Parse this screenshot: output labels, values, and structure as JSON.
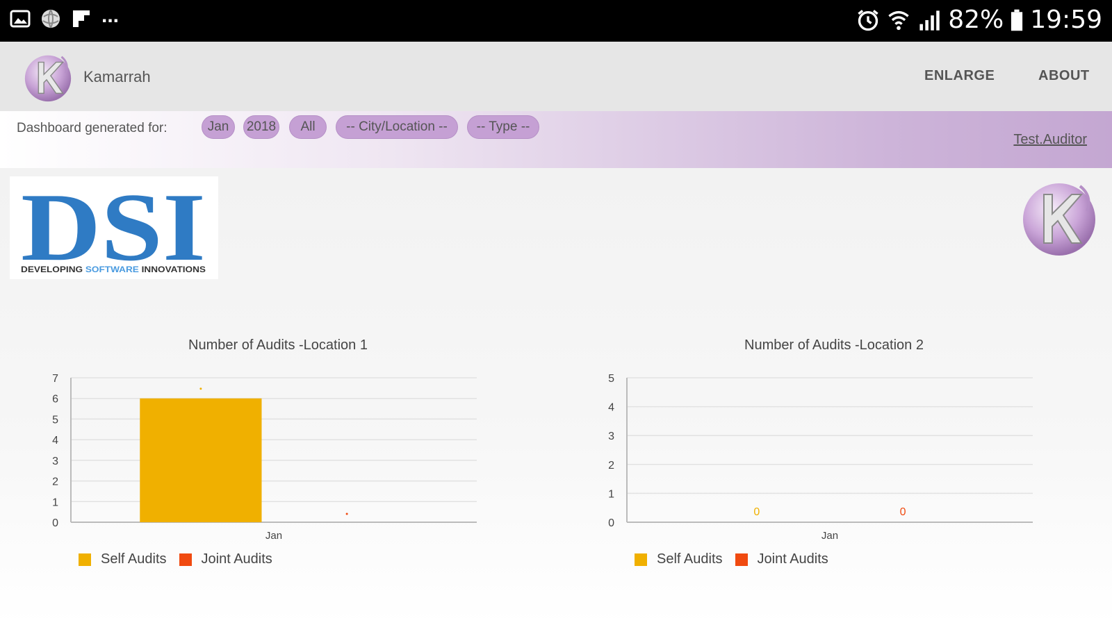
{
  "status_bar": {
    "left_icons": [
      "image-icon",
      "globe-app-icon",
      "flipboard-icon",
      "more-notifications-icon"
    ],
    "more_text": "...",
    "battery": "82%",
    "time": "19:59"
  },
  "app_bar": {
    "app_name": "Kamarrah",
    "enlarge_label": "ENLARGE",
    "about_label": "ABOUT"
  },
  "filters": {
    "label": "Dashboard generated for:",
    "month": "Jan",
    "year": "2018",
    "scope": "All",
    "location": "-- City/Location --",
    "type": "-- Type --",
    "user": "Test.Auditor"
  },
  "branding": {
    "dsi_letters": "DSI",
    "dsi_tag_1": "DEVELOPING ",
    "dsi_tag_2": "SOFTWARE",
    "dsi_tag_3": " INNOVATIONS"
  },
  "colors": {
    "self": "#f0b000",
    "joint": "#f04a10",
    "accent": "#c5a0d4"
  },
  "chart_data": [
    {
      "type": "bar",
      "title": "Number of Audits -Location 1",
      "categories": [
        "Jan"
      ],
      "series": [
        {
          "name": "Self Audits",
          "values": [
            6
          ]
        },
        {
          "name": "Joint Audits",
          "values": [
            0
          ]
        }
      ],
      "ylim": [
        0,
        7
      ],
      "yticks": [
        0,
        1,
        2,
        3,
        4,
        5,
        6,
        7
      ],
      "grid": true,
      "legend": "bottom-left",
      "data_labels": [
        "",
        ""
      ]
    },
    {
      "type": "bar",
      "title": "Number of Audits -Location 2",
      "categories": [
        "Jan"
      ],
      "series": [
        {
          "name": "Self Audits",
          "values": [
            0
          ]
        },
        {
          "name": "Joint Audits",
          "values": [
            0
          ]
        }
      ],
      "ylim": [
        0,
        5
      ],
      "yticks": [
        0,
        1,
        2,
        3,
        4,
        5
      ],
      "grid": true,
      "legend": "bottom-left",
      "data_labels": [
        "0",
        "0"
      ]
    }
  ]
}
